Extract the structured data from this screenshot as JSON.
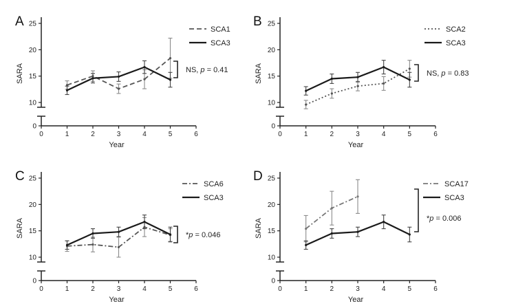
{
  "chart_data": [
    {
      "panel": "A",
      "type": "line",
      "xlabel": "Year",
      "ylabel": "SARA",
      "xlim": [
        0,
        6
      ],
      "ylim": [
        0,
        25
      ],
      "axis_break": [
        1,
        9
      ],
      "xticks": [
        "0",
        "1",
        "2",
        "3",
        "4",
        "5",
        "6"
      ],
      "yticks": [
        "0",
        "10",
        "15",
        "20",
        "25"
      ],
      "series": [
        {
          "name": "SCA1",
          "style": "dashed",
          "color": "#555555",
          "x": [
            1,
            2,
            3,
            4,
            5
          ],
          "y": [
            13.3,
            15.0,
            12.6,
            14.4,
            18.4
          ],
          "err": [
            0.8,
            1.0,
            0.9,
            1.8,
            3.8
          ]
        },
        {
          "name": "SCA3",
          "style": "solid",
          "color": "#1a1a1a",
          "x": [
            1,
            2,
            3,
            4,
            5
          ],
          "y": [
            12.3,
            14.6,
            14.9,
            16.7,
            14.3
          ],
          "err": [
            0.8,
            0.9,
            0.9,
            1.2,
            1.4
          ]
        }
      ],
      "annotation": {
        "prefix": "NS, ",
        "p": "p",
        "rest": " = 0.41"
      }
    },
    {
      "panel": "B",
      "type": "line",
      "xlabel": "Year",
      "ylabel": "SARA",
      "xlim": [
        0,
        6
      ],
      "ylim": [
        0,
        25
      ],
      "axis_break": [
        1,
        9
      ],
      "xticks": [
        "0",
        "1",
        "2",
        "3",
        "4",
        "5",
        "6"
      ],
      "yticks": [
        "0",
        "10",
        "15",
        "20",
        "25"
      ],
      "series": [
        {
          "name": "SCA2",
          "style": "dotted",
          "color": "#555555",
          "x": [
            1,
            2,
            3,
            4,
            5
          ],
          "y": [
            9.6,
            11.7,
            13.1,
            13.6,
            16.4
          ],
          "err": [
            0.8,
            0.9,
            0.9,
            1.3,
            1.6
          ]
        },
        {
          "name": "SCA3",
          "style": "solid",
          "color": "#1a1a1a",
          "x": [
            1,
            2,
            3,
            4,
            5
          ],
          "y": [
            12.2,
            14.5,
            14.8,
            16.7,
            14.3
          ],
          "err": [
            0.8,
            0.9,
            0.9,
            1.3,
            1.4
          ]
        }
      ],
      "annotation": {
        "prefix": "NS, ",
        "p": "p",
        "rest": " = 0.83"
      }
    },
    {
      "panel": "C",
      "type": "line",
      "xlabel": "Year",
      "ylabel": "SARA",
      "xlim": [
        0,
        6
      ],
      "ylim": [
        0,
        25
      ],
      "axis_break": [
        1,
        9
      ],
      "xticks": [
        "0",
        "1",
        "2",
        "3",
        "4",
        "5",
        "6"
      ],
      "yticks": [
        "0",
        "10",
        "15",
        "20",
        "25"
      ],
      "series": [
        {
          "name": "SCA6",
          "style": "dashdot",
          "color": "#555555",
          "x": [
            1,
            2,
            3,
            4,
            5
          ],
          "y": [
            12.1,
            12.4,
            11.9,
            15.7,
            14.2
          ],
          "err": [
            1.0,
            1.4,
            1.9,
            1.8,
            1.2
          ]
        },
        {
          "name": "SCA3",
          "style": "solid",
          "color": "#1a1a1a",
          "x": [
            1,
            2,
            3,
            4,
            5
          ],
          "y": [
            12.3,
            14.5,
            14.8,
            16.7,
            14.3
          ],
          "err": [
            0.8,
            0.9,
            0.9,
            1.3,
            1.4
          ]
        }
      ],
      "annotation": {
        "prefix": "*",
        "p": "p",
        "rest": " = 0.046"
      }
    },
    {
      "panel": "D",
      "type": "line",
      "xlabel": "Year",
      "ylabel": "SARA",
      "xlim": [
        0,
        6
      ],
      "ylim": [
        0,
        25
      ],
      "axis_break": [
        1,
        9
      ],
      "xticks": [
        "0",
        "1",
        "2",
        "3",
        "4",
        "5",
        "6"
      ],
      "yticks": [
        "0",
        "10",
        "15",
        "20",
        "25"
      ],
      "series": [
        {
          "name": "SCA17",
          "style": "dashdot",
          "color": "#777777",
          "x": [
            1,
            2,
            3
          ],
          "y": [
            15.4,
            19.3,
            21.5
          ],
          "err": [
            2.5,
            3.2,
            3.2
          ]
        },
        {
          "name": "SCA3",
          "style": "solid",
          "color": "#1a1a1a",
          "x": [
            1,
            2,
            3,
            4,
            5
          ],
          "y": [
            12.3,
            14.5,
            14.8,
            16.7,
            14.3
          ],
          "err": [
            0.8,
            0.9,
            0.9,
            1.3,
            1.4
          ]
        }
      ],
      "annotation": {
        "prefix": "*",
        "p": "p",
        "rest": " = 0.006"
      }
    }
  ]
}
